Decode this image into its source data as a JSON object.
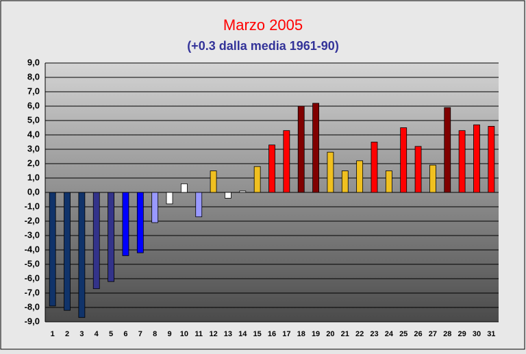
{
  "chart_data": {
    "type": "bar",
    "title": "Marzo 2005",
    "subtitle": "(+0.3 dalla media 1961-90)",
    "categories": [
      "1",
      "2",
      "3",
      "4",
      "5",
      "6",
      "7",
      "8",
      "9",
      "10",
      "11",
      "12",
      "13",
      "14",
      "15",
      "16",
      "17",
      "18",
      "19",
      "20",
      "21",
      "22",
      "23",
      "24",
      "25",
      "26",
      "27",
      "28",
      "29",
      "30",
      "31"
    ],
    "values": [
      -7.9,
      -8.2,
      -8.7,
      -6.7,
      -6.2,
      -4.4,
      -4.2,
      -2.1,
      -0.8,
      0.6,
      -1.7,
      1.5,
      -0.4,
      0.1,
      1.8,
      3.3,
      4.3,
      6.0,
      6.2,
      2.8,
      1.5,
      2.2,
      3.5,
      1.5,
      4.5,
      3.2,
      1.9,
      5.9,
      4.3,
      4.7,
      4.6
    ],
    "colors": [
      "#10336a",
      "#10336a",
      "#10336a",
      "#33338a",
      "#33338a",
      "#0000ff",
      "#0000ff",
      "#9999ff",
      "#ffffff",
      "#ffffff",
      "#9999ff",
      "#f0c020",
      "#ffffff",
      "#ffffff",
      "#f0c020",
      "#ff0000",
      "#ff0000",
      "#800000",
      "#800000",
      "#f0c020",
      "#f0c020",
      "#f0c020",
      "#ff0000",
      "#f0c020",
      "#ff0000",
      "#ff0000",
      "#f0c020",
      "#800000",
      "#ff0000",
      "#ff0000",
      "#ff0000"
    ],
    "ylim": [
      -9,
      9
    ],
    "yticks": [
      {
        "value": -9,
        "label": "-9,0"
      },
      {
        "value": -8,
        "label": "-8,0"
      },
      {
        "value": -7,
        "label": "-7,0"
      },
      {
        "value": -6,
        "label": "-6,0"
      },
      {
        "value": -5,
        "label": "-5,0"
      },
      {
        "value": -4,
        "label": "-4,0"
      },
      {
        "value": -3,
        "label": "-3,0"
      },
      {
        "value": -2,
        "label": "-2,0"
      },
      {
        "value": -1,
        "label": "-1,0"
      },
      {
        "value": 0,
        "label": "0,0"
      },
      {
        "value": 1,
        "label": "1,0"
      },
      {
        "value": 2,
        "label": "2,0"
      },
      {
        "value": 3,
        "label": "3,0"
      },
      {
        "value": 4,
        "label": "4,0"
      },
      {
        "value": 5,
        "label": "5,0"
      },
      {
        "value": 6,
        "label": "6,0"
      },
      {
        "value": 7,
        "label": "7,0"
      },
      {
        "value": 8,
        "label": "8,0"
      },
      {
        "value": 9,
        "label": "9,0"
      }
    ],
    "grid": true
  }
}
